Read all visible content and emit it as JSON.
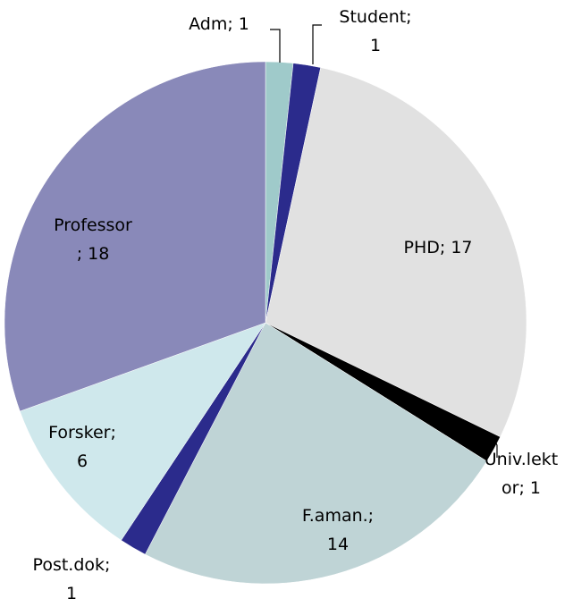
{
  "chart_data": {
    "type": "pie",
    "categories": [
      "Adm; 1",
      "Student;\n1",
      "PHD; 17",
      "Univ.lekt\nor; 1",
      "F.aman.;\n14",
      "Post.dok;\n1",
      "Forsker;\n6",
      "Professor\n; 18"
    ],
    "values": [
      1,
      1,
      17,
      1,
      14,
      1,
      6,
      18
    ],
    "colors": [
      "#9fcaca",
      "#2b2b8c",
      "#e1e1e1",
      "#000000",
      "#bfd4d6",
      "#2b2b8c",
      "#cfe8ec",
      "#8989b9"
    ]
  }
}
